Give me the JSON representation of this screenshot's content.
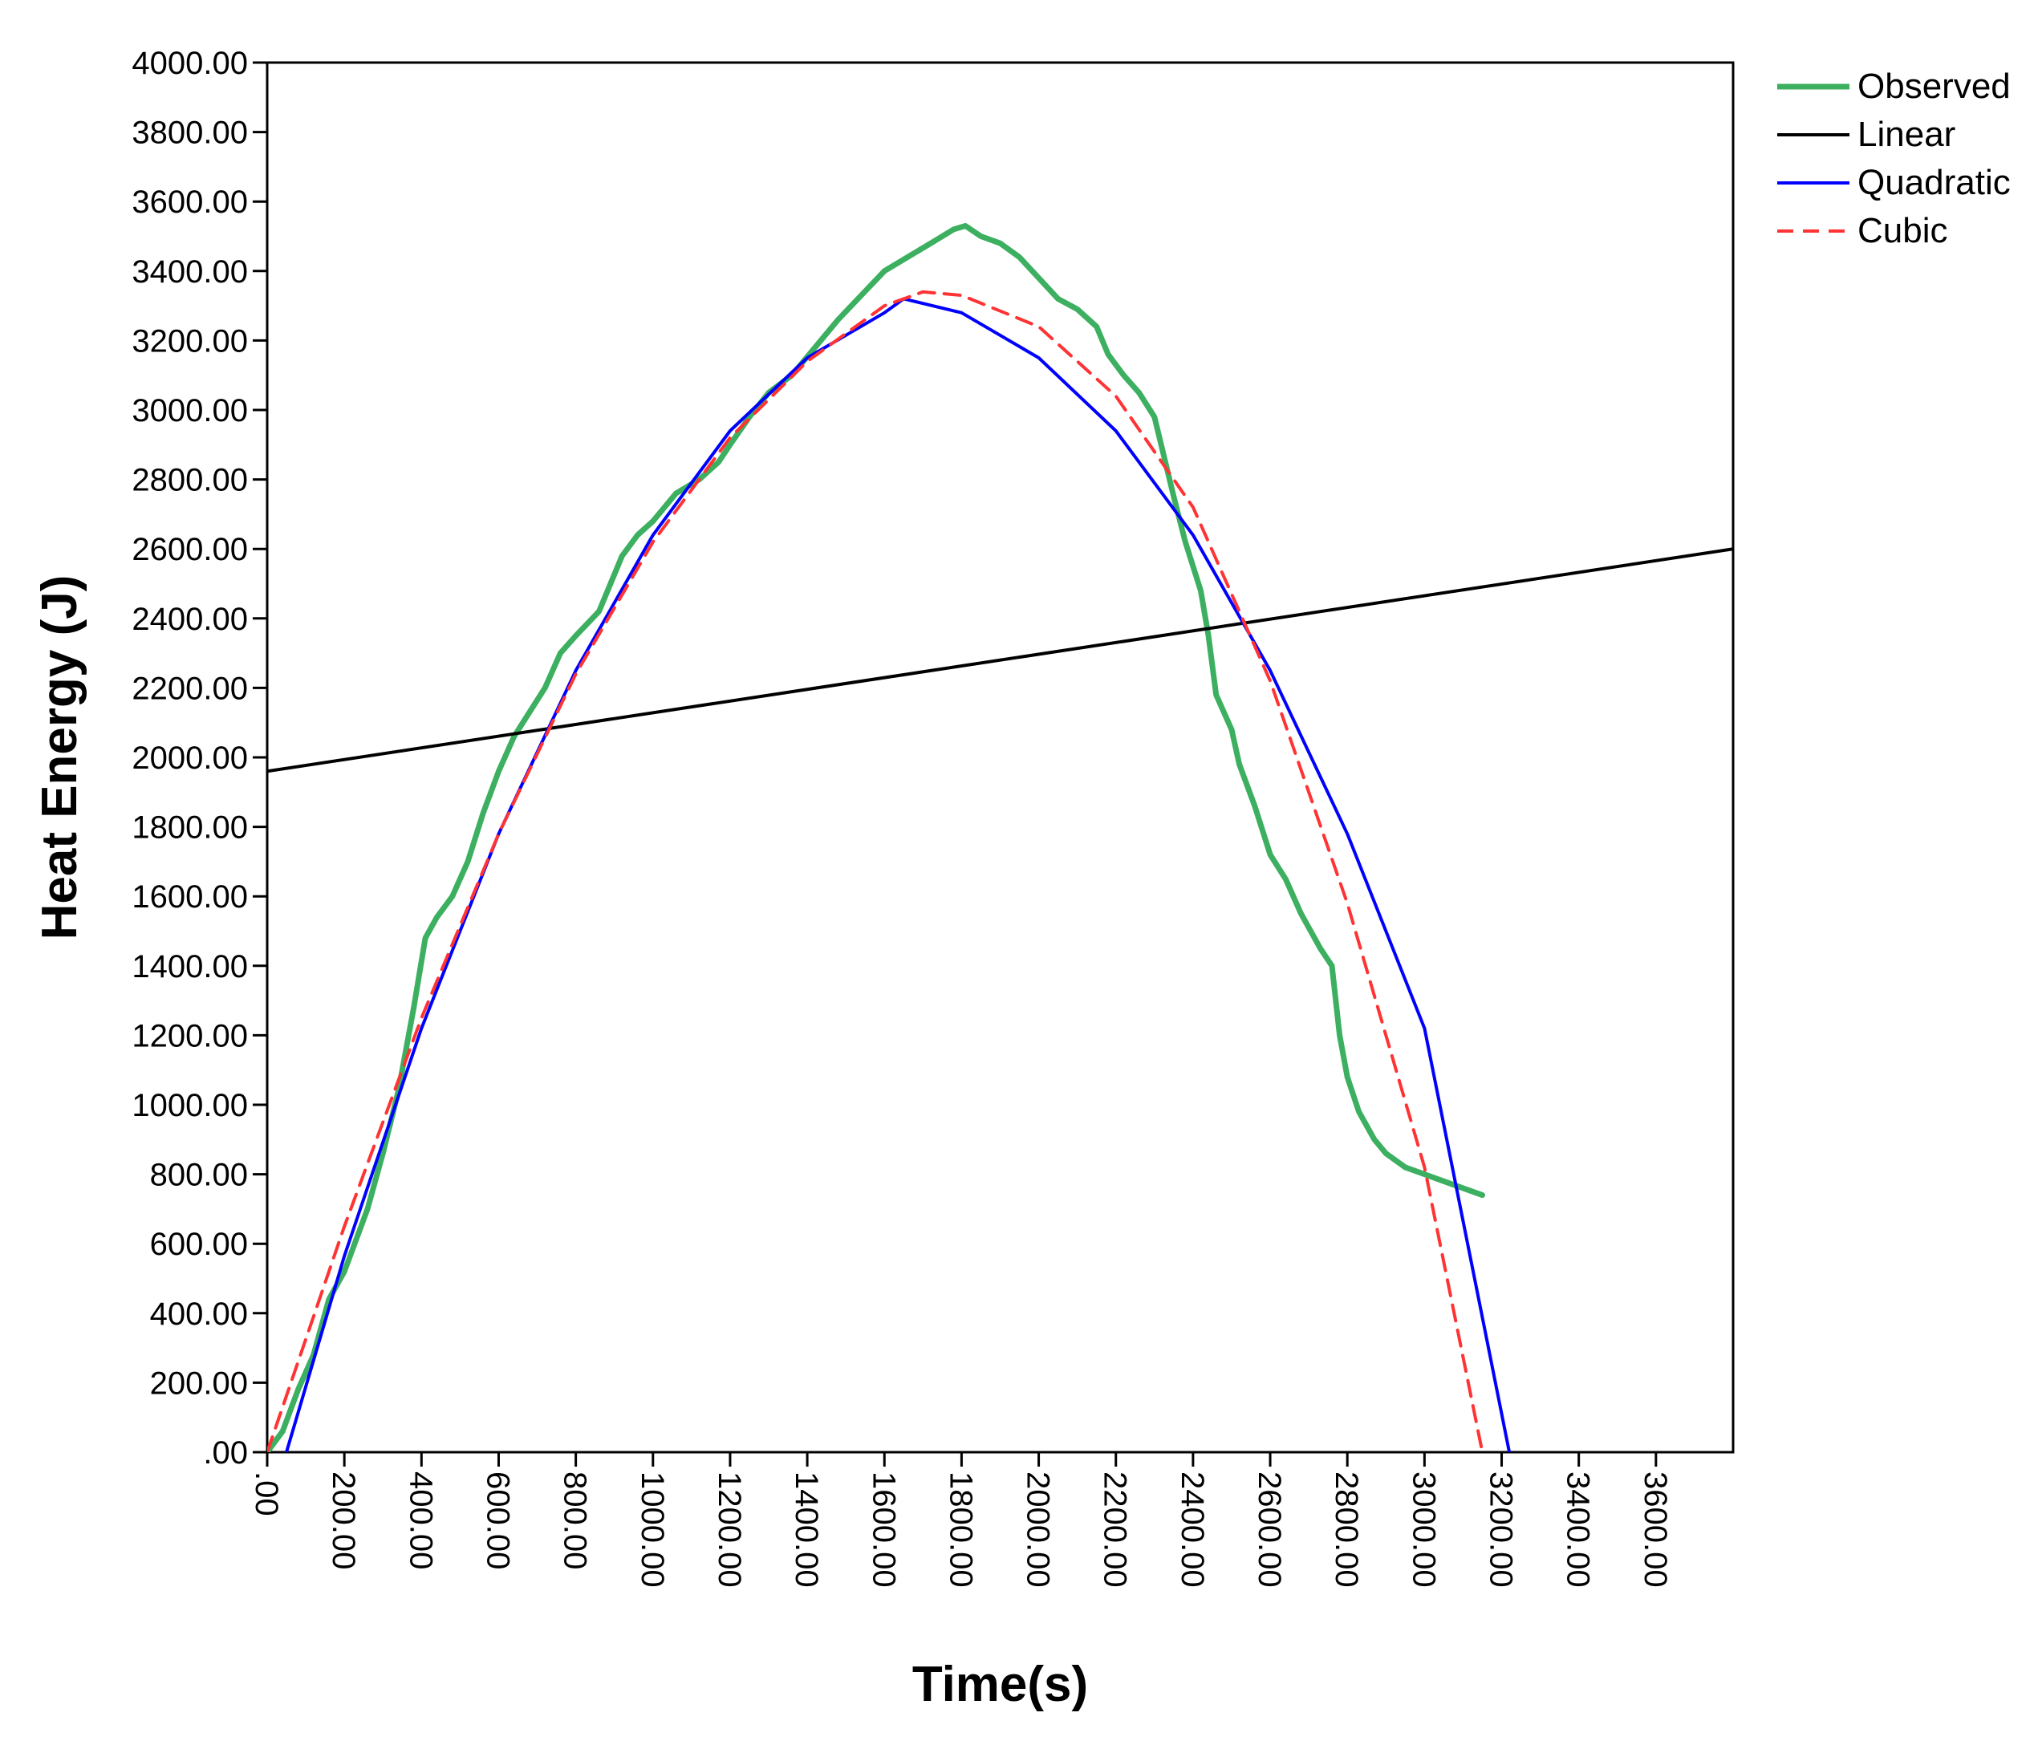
{
  "chart_data": {
    "type": "line",
    "title": "",
    "xlabel": "Time(s)",
    "ylabel": "Heat Energy (J)",
    "xlim": [
      0,
      3800
    ],
    "ylim": [
      0,
      4000
    ],
    "x_ticks": [
      ".00",
      "200.00",
      "400.00",
      "600.00",
      "800.00",
      "1000.00",
      "1200.00",
      "1400.00",
      "1600.00",
      "1800.00",
      "2000.00",
      "2200.00",
      "2400.00",
      "2600.00",
      "2800.00",
      "3000.00",
      "3200.00",
      "3400.00",
      "3600.00"
    ],
    "y_ticks": [
      ".00",
      "200.00",
      "400.00",
      "600.00",
      "800.00",
      "1000.00",
      "1200.00",
      "1400.00",
      "1600.00",
      "1800.00",
      "2000.00",
      "2200.00",
      "2400.00",
      "2600.00",
      "2800.00",
      "3000.00",
      "3200.00",
      "3400.00",
      "3600.00",
      "3800.00",
      "4000.00"
    ],
    "grid": false,
    "legend_position": "top-right, outside plot",
    "series": [
      {
        "name": "Observed",
        "style": "solid-thick",
        "color": "#3cb060",
        "x": [
          0,
          40,
          80,
          120,
          160,
          200,
          260,
          300,
          340,
          380,
          410,
          440,
          480,
          520,
          560,
          600,
          640,
          680,
          720,
          760,
          800,
          860,
          920,
          960,
          1000,
          1060,
          1120,
          1170,
          1200,
          1250,
          1300,
          1360,
          1420,
          1480,
          1540,
          1600,
          1660,
          1720,
          1780,
          1810,
          1850,
          1900,
          1950,
          2000,
          2050,
          2100,
          2150,
          2180,
          2220,
          2260,
          2300,
          2350,
          2380,
          2420,
          2440,
          2460,
          2500,
          2520,
          2560,
          2600,
          2640,
          2680,
          2730,
          2760,
          2780,
          2800,
          2830,
          2870,
          2900,
          2950,
          3000,
          3050,
          3100,
          3150
        ],
        "y": [
          0,
          60,
          180,
          280,
          440,
          520,
          700,
          860,
          1040,
          1280,
          1480,
          1540,
          1600,
          1700,
          1840,
          1960,
          2060,
          2130,
          2200,
          2300,
          2350,
          2420,
          2580,
          2640,
          2680,
          2760,
          2800,
          2850,
          2900,
          2980,
          3050,
          3100,
          3180,
          3260,
          3330,
          3400,
          3440,
          3480,
          3520,
          3530,
          3500,
          3480,
          3440,
          3380,
          3320,
          3290,
          3240,
          3160,
          3100,
          3050,
          2980,
          2750,
          2620,
          2480,
          2350,
          2180,
          2080,
          1980,
          1860,
          1720,
          1650,
          1550,
          1450,
          1400,
          1200,
          1080,
          980,
          900,
          860,
          820,
          800,
          780,
          760,
          740
        ]
      },
      {
        "name": "Linear",
        "style": "solid",
        "color": "#000000",
        "x": [
          0,
          3800
        ],
        "y": [
          1960,
          2600
        ]
      },
      {
        "name": "Quadratic",
        "style": "solid",
        "color": "#0000ff",
        "x": [
          50,
          200,
          400,
          600,
          800,
          1000,
          1200,
          1400,
          1600,
          1650,
          1800,
          2000,
          2200,
          2400,
          2600,
          2800,
          3000,
          3220
        ],
        "y": [
          0,
          565,
          1220,
          1780,
          2250,
          2640,
          2940,
          3150,
          3280,
          3320,
          3280,
          3150,
          2940,
          2640,
          2250,
          1780,
          1220,
          0
        ]
      },
      {
        "name": "Cubic",
        "style": "dashed",
        "color": "#ff3333",
        "x": [
          0,
          200,
          400,
          600,
          800,
          1000,
          1200,
          1400,
          1600,
          1700,
          1800,
          2000,
          2200,
          2400,
          2600,
          2800,
          3000,
          3150
        ],
        "y": [
          0,
          650,
          1250,
          1780,
          2240,
          2620,
          2920,
          3140,
          3300,
          3340,
          3330,
          3240,
          3040,
          2720,
          2220,
          1580,
          820,
          0
        ]
      }
    ]
  }
}
